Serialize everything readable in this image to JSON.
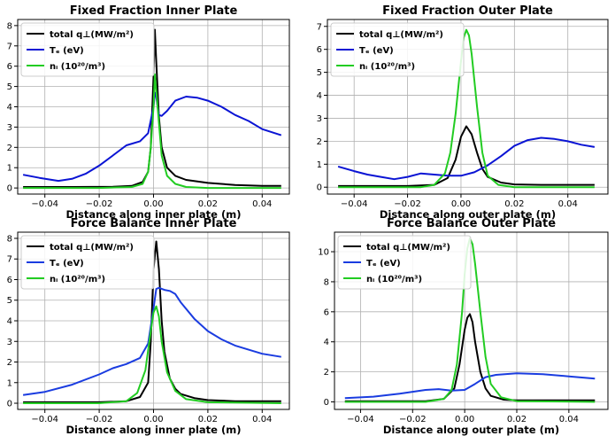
{
  "chart_data": [
    {
      "type": "line",
      "title": "Fixed Fraction Inner Plate",
      "xlabel": "Distance along inner plate (m)",
      "ylabel": "",
      "xlim": [
        -0.05,
        0.05
      ],
      "ylim": [
        -0.3,
        8.3
      ],
      "xticks": [
        -0.04,
        -0.02,
        0.0,
        0.02,
        0.04
      ],
      "xtick_labels": [
        "−0.04",
        "−0.02",
        "0.00",
        "0.02",
        "0.04"
      ],
      "yticks": [
        0,
        1,
        2,
        3,
        4,
        5,
        6,
        7,
        8
      ],
      "ytick_labels": [
        "0",
        "1",
        "2",
        "3",
        "4",
        "5",
        "6",
        "7",
        "8"
      ],
      "grid": true,
      "legend_position": "top-left",
      "series": [
        {
          "name": "total q⊥(MW/m²)",
          "color": "#000000",
          "x": [
            -0.048,
            -0.03,
            -0.015,
            -0.008,
            -0.004,
            -0.002,
            -0.001,
            0.0,
            0.0005,
            0.001,
            0.002,
            0.003,
            0.005,
            0.008,
            0.012,
            0.02,
            0.03,
            0.04,
            0.047
          ],
          "y": [
            0.05,
            0.05,
            0.06,
            0.1,
            0.3,
            0.8,
            2.0,
            5.5,
            7.8,
            6.2,
            3.5,
            2.0,
            1.0,
            0.6,
            0.4,
            0.25,
            0.15,
            0.1,
            0.1
          ]
        },
        {
          "name": "Tₑ (eV)",
          "color": "#0a14d4",
          "x": [
            -0.048,
            -0.042,
            -0.035,
            -0.03,
            -0.025,
            -0.02,
            -0.015,
            -0.01,
            -0.005,
            -0.002,
            0.0,
            0.0005,
            0.001,
            0.0015,
            0.002,
            0.003,
            0.005,
            0.008,
            0.012,
            0.016,
            0.02,
            0.025,
            0.03,
            0.035,
            0.04,
            0.047
          ],
          "y": [
            0.65,
            0.5,
            0.35,
            0.45,
            0.7,
            1.1,
            1.6,
            2.1,
            2.3,
            2.7,
            4.0,
            4.7,
            4.5,
            4.0,
            3.6,
            3.55,
            3.8,
            4.3,
            4.5,
            4.45,
            4.3,
            4.0,
            3.6,
            3.3,
            2.9,
            2.6
          ]
        },
        {
          "name": "nᵢ (10²⁰/m³)",
          "color": "#22cc22",
          "x": [
            -0.048,
            -0.02,
            -0.008,
            -0.004,
            -0.002,
            -0.001,
            0.0,
            0.0005,
            0.001,
            0.002,
            0.003,
            0.005,
            0.008,
            0.012,
            0.02,
            0.047
          ],
          "y": [
            0.0,
            0.0,
            0.05,
            0.2,
            0.8,
            2.0,
            4.0,
            5.6,
            4.8,
            3.2,
            1.6,
            0.6,
            0.2,
            0.05,
            0.0,
            0.0
          ]
        }
      ]
    },
    {
      "type": "line",
      "title": "Fixed Fraction Outer Plate",
      "xlabel": "Distance along outer plate (m)",
      "ylabel": "",
      "xlim": [
        -0.05,
        0.055
      ],
      "ylim": [
        -0.3,
        7.3
      ],
      "xticks": [
        -0.04,
        -0.02,
        0.0,
        0.02,
        0.04
      ],
      "xtick_labels": [
        "−0.04",
        "−0.02",
        "0.00",
        "0.02",
        "0.04"
      ],
      "yticks": [
        0,
        1,
        2,
        3,
        4,
        5,
        6,
        7
      ],
      "ytick_labels": [
        "0",
        "1",
        "2",
        "3",
        "4",
        "5",
        "6",
        "7"
      ],
      "grid": true,
      "legend_position": "top-left",
      "series": [
        {
          "name": "total q⊥(MW/m²)",
          "color": "#000000",
          "x": [
            -0.046,
            -0.02,
            -0.01,
            -0.005,
            -0.002,
            0.0,
            0.002,
            0.004,
            0.006,
            0.008,
            0.01,
            0.015,
            0.02,
            0.03,
            0.04,
            0.05
          ],
          "y": [
            0.05,
            0.05,
            0.1,
            0.4,
            1.2,
            2.2,
            2.65,
            2.3,
            1.5,
            0.8,
            0.45,
            0.2,
            0.12,
            0.1,
            0.1,
            0.1
          ]
        },
        {
          "name": "Tₑ (eV)",
          "color": "#0a14d4",
          "x": [
            -0.046,
            -0.04,
            -0.035,
            -0.03,
            -0.025,
            -0.02,
            -0.015,
            -0.01,
            -0.005,
            0.0,
            0.005,
            0.01,
            0.015,
            0.02,
            0.025,
            0.03,
            0.035,
            0.04,
            0.045,
            0.05
          ],
          "y": [
            0.9,
            0.7,
            0.55,
            0.45,
            0.35,
            0.45,
            0.6,
            0.55,
            0.5,
            0.5,
            0.65,
            0.95,
            1.35,
            1.8,
            2.05,
            2.15,
            2.1,
            2.0,
            1.85,
            1.75
          ]
        },
        {
          "name": "nᵢ (10²⁰/m³)",
          "color": "#22cc22",
          "x": [
            -0.046,
            -0.015,
            -0.01,
            -0.006,
            -0.004,
            -0.002,
            0.0,
            0.001,
            0.002,
            0.003,
            0.004,
            0.006,
            0.008,
            0.01,
            0.014,
            0.02,
            0.05
          ],
          "y": [
            0.0,
            0.0,
            0.1,
            0.6,
            1.5,
            3.2,
            5.5,
            6.5,
            6.85,
            6.6,
            5.8,
            3.5,
            1.5,
            0.5,
            0.1,
            0.0,
            0.0
          ]
        }
      ]
    },
    {
      "type": "line",
      "title": "Force Balance Inner Plate",
      "xlabel": "Distance along inner plate (m)",
      "ylabel": "",
      "xlim": [
        -0.05,
        0.05
      ],
      "ylim": [
        -0.3,
        8.3
      ],
      "xticks": [
        -0.04,
        -0.02,
        0.0,
        0.02,
        0.04
      ],
      "xtick_labels": [
        "−0.04",
        "−0.02",
        "0.00",
        "0.02",
        "0.04"
      ],
      "yticks": [
        0,
        1,
        2,
        3,
        4,
        5,
        6,
        7,
        8
      ],
      "ytick_labels": [
        "0",
        "1",
        "2",
        "3",
        "4",
        "5",
        "6",
        "7",
        "8"
      ],
      "grid": true,
      "legend_position": "top-left",
      "series": [
        {
          "name": "total q⊥(MW/m²)",
          "color": "#000000",
          "x": [
            -0.048,
            -0.02,
            -0.01,
            -0.005,
            -0.002,
            -0.001,
            0.0,
            0.001,
            0.002,
            0.003,
            0.004,
            0.006,
            0.008,
            0.01,
            0.015,
            0.02,
            0.03,
            0.047
          ],
          "y": [
            0.05,
            0.05,
            0.1,
            0.3,
            1.0,
            3.0,
            6.5,
            7.85,
            6.5,
            4.0,
            2.5,
            1.2,
            0.7,
            0.45,
            0.25,
            0.15,
            0.1,
            0.1
          ]
        },
        {
          "name": "Tₑ (eV)",
          "color": "#1a3ce0",
          "x": [
            -0.048,
            -0.04,
            -0.03,
            -0.02,
            -0.015,
            -0.01,
            -0.005,
            -0.002,
            0.0,
            0.001,
            0.002,
            0.004,
            0.006,
            0.008,
            0.01,
            0.015,
            0.02,
            0.025,
            0.03,
            0.035,
            0.04,
            0.047
          ],
          "y": [
            0.4,
            0.55,
            0.9,
            1.4,
            1.7,
            1.9,
            2.2,
            2.9,
            4.6,
            5.55,
            5.6,
            5.5,
            5.45,
            5.3,
            4.9,
            4.1,
            3.5,
            3.1,
            2.8,
            2.6,
            2.4,
            2.25
          ]
        },
        {
          "name": "nᵢ (10²⁰/m³)",
          "color": "#22cc22",
          "x": [
            -0.048,
            -0.02,
            -0.01,
            -0.006,
            -0.003,
            -0.001,
            0.0,
            0.001,
            0.002,
            0.003,
            0.005,
            0.008,
            0.012,
            0.02,
            0.047
          ],
          "y": [
            0.0,
            0.0,
            0.1,
            0.5,
            1.6,
            3.5,
            4.4,
            4.7,
            4.2,
            3.0,
            1.5,
            0.6,
            0.2,
            0.05,
            0.0
          ]
        }
      ]
    },
    {
      "type": "line",
      "title": "Force Balance Outer Plate",
      "xlabel": "Distance along outer plate (m)",
      "ylabel": "",
      "xlim": [
        -0.05,
        0.055
      ],
      "ylim": [
        -0.5,
        11.3
      ],
      "xticks": [
        -0.04,
        -0.02,
        0.0,
        0.02,
        0.04
      ],
      "xtick_labels": [
        "−0.04",
        "−0.02",
        "0.00",
        "0.02",
        "0.04"
      ],
      "yticks": [
        0,
        2,
        4,
        6,
        8,
        10
      ],
      "ytick_labels": [
        "0",
        "2",
        "4",
        "6",
        "8",
        "10"
      ],
      "grid": true,
      "legend_position": "top-left",
      "series": [
        {
          "name": "total q⊥(MW/m²)",
          "color": "#000000",
          "x": [
            -0.046,
            -0.015,
            -0.008,
            -0.004,
            -0.002,
            0.0,
            0.001,
            0.002,
            0.003,
            0.004,
            0.006,
            0.008,
            0.01,
            0.015,
            0.02,
            0.05
          ],
          "y": [
            0.05,
            0.05,
            0.2,
            0.9,
            2.5,
            4.8,
            5.6,
            5.85,
            5.3,
            4.0,
            2.0,
            0.9,
            0.4,
            0.15,
            0.1,
            0.1
          ]
        },
        {
          "name": "Tₑ (eV)",
          "color": "#1a3ce0",
          "x": [
            -0.046,
            -0.035,
            -0.025,
            -0.015,
            -0.01,
            -0.005,
            0.0,
            0.004,
            0.008,
            0.012,
            0.02,
            0.03,
            0.04,
            0.05
          ],
          "y": [
            0.25,
            0.35,
            0.55,
            0.8,
            0.85,
            0.75,
            0.8,
            1.2,
            1.65,
            1.8,
            1.9,
            1.85,
            1.7,
            1.55
          ]
        },
        {
          "name": "nᵢ (10²⁰/m³)",
          "color": "#22cc22",
          "x": [
            -0.046,
            -0.015,
            -0.008,
            -0.005,
            -0.003,
            -0.001,
            0.0,
            0.001,
            0.002,
            0.003,
            0.004,
            0.006,
            0.008,
            0.01,
            0.014,
            0.02,
            0.05
          ],
          "y": [
            0.0,
            0.0,
            0.2,
            0.8,
            2.5,
            6.0,
            8.5,
            10.2,
            10.9,
            10.5,
            9.2,
            6.0,
            3.0,
            1.2,
            0.3,
            0.05,
            0.0
          ]
        }
      ]
    }
  ]
}
